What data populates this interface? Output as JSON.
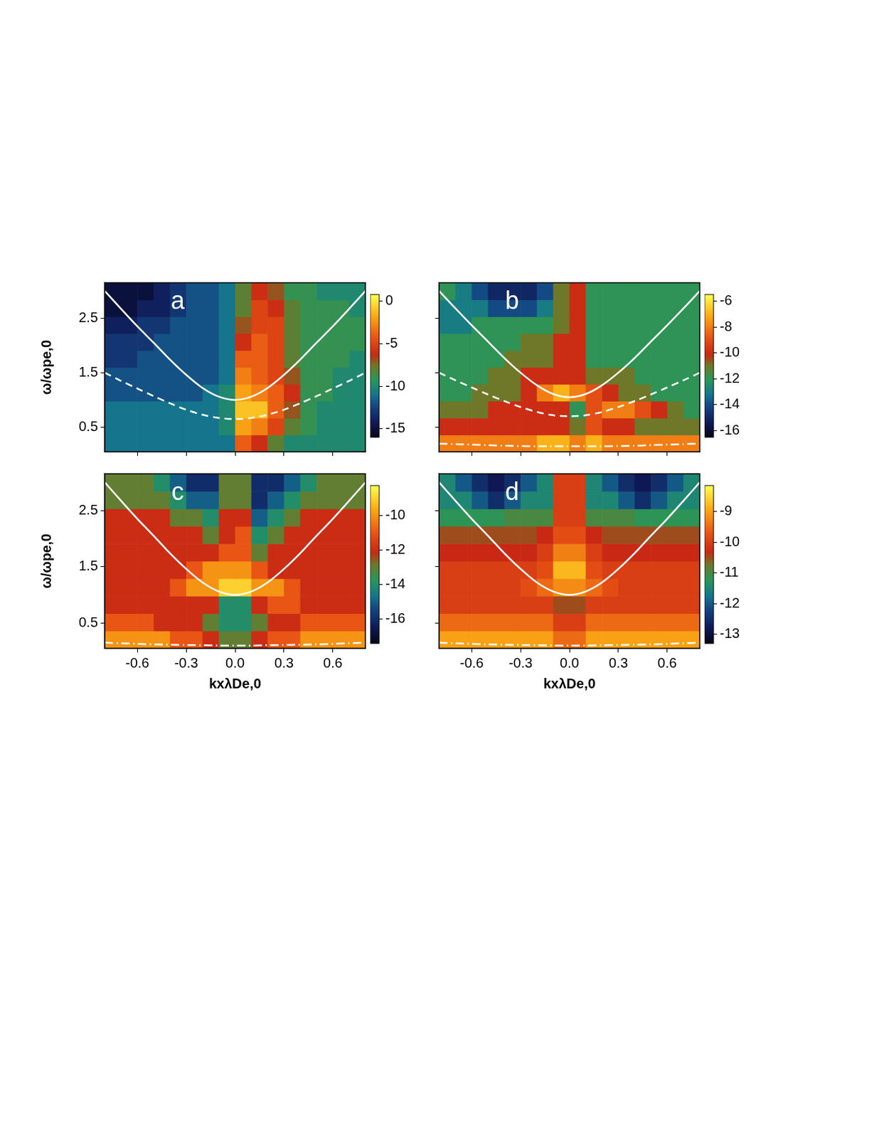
{
  "chart_data": [
    {
      "type": "heatmap",
      "label": "a",
      "ylabel": "ω/ωpe,0",
      "tick_labels": "y",
      "grid": false,
      "xlim": [
        -0.8,
        0.8
      ],
      "ylim": [
        0.05,
        3.15
      ],
      "xticks": [
        -0.6,
        -0.3,
        {
          "value": 0,
          "label": "0.0"
        },
        0.3,
        0.6
      ],
      "yticks": [
        0.5,
        1.5,
        2.5
      ],
      "x_edges": [
        -0.8,
        -0.7,
        -0.6,
        -0.5,
        -0.4,
        -0.3,
        -0.2,
        -0.1,
        0,
        0.1,
        0.2,
        0.3,
        0.4,
        0.5,
        0.6,
        0.7,
        0.8
      ],
      "y_edges": [
        0.05,
        0.36,
        0.67,
        0.98,
        1.29,
        1.6,
        1.91,
        2.22,
        2.53,
        2.84,
        3.15
      ],
      "cells": [
        [
          -11,
          -11,
          -11,
          -11,
          -11,
          -11,
          -11,
          -11,
          -4,
          -6,
          -8,
          -10,
          -10,
          -10,
          -10,
          -10
        ],
        [
          -11,
          -11,
          -11,
          -11,
          -11,
          -11,
          -11,
          -10,
          -2,
          -3,
          -5,
          -8,
          -9,
          -10,
          -10,
          -10
        ],
        [
          -11,
          -11,
          -11,
          -11,
          -11,
          -11,
          -11,
          -10,
          -1,
          -1,
          -4,
          -7,
          -9,
          -10,
          -10,
          -10
        ],
        [
          -12,
          -12,
          -12,
          -12,
          -12,
          -12,
          -11,
          -10,
          -2,
          -3,
          -4,
          -6,
          -9,
          -9,
          -10,
          -10
        ],
        [
          -12,
          -12,
          -12,
          -12,
          -12,
          -12,
          -12,
          -11,
          -3,
          -4,
          -5,
          -7,
          -9,
          -9,
          -10,
          -10
        ],
        [
          -13,
          -13,
          -12,
          -12,
          -12,
          -12,
          -12,
          -11,
          -4,
          -4,
          -5,
          -8,
          -9,
          -9,
          -9,
          -10
        ],
        [
          -13,
          -13,
          -13,
          -12,
          -12,
          -12,
          -12,
          -11,
          -6,
          -4,
          -5,
          -8,
          -9,
          -9,
          -9,
          -9
        ],
        [
          -14,
          -14,
          -13,
          -13,
          -12,
          -12,
          -12,
          -11,
          -7,
          -5,
          -5,
          -8,
          -9,
          -9,
          -9,
          -9
        ],
        [
          -15,
          -15,
          -14,
          -14,
          -13,
          -12,
          -12,
          -11,
          -8,
          -5,
          -6,
          -8,
          -9,
          -9,
          -9,
          -10
        ],
        [
          -15,
          -15,
          -15,
          -14,
          -13,
          -12,
          -12,
          -11,
          -8,
          -6,
          -7,
          -9,
          -9,
          -10,
          -10,
          -10
        ]
      ],
      "colorbar": {
        "range": [
          -16,
          0.8
        ],
        "ticks": [
          0,
          -5,
          -10,
          -15
        ]
      },
      "x": [
        -0.8,
        -0.7,
        -0.6,
        -0.5,
        -0.4,
        -0.3,
        -0.2,
        -0.1,
        0,
        0.1,
        0.2,
        0.3,
        0.4,
        0.5,
        0.6,
        0.7,
        0.8
      ],
      "series": [
        {
          "color": "#ffffff",
          "line_style": "solid",
          "values": [
            3.0,
            2.67,
            2.35,
            2.05,
            1.74,
            1.46,
            1.22,
            1.06,
            1.0,
            1.06,
            1.22,
            1.46,
            1.74,
            2.05,
            2.35,
            2.67,
            3.0
          ]
        },
        {
          "color": "#ffffff",
          "line_style": "dashed",
          "values": [
            1.5,
            1.35,
            1.21,
            1.07,
            0.94,
            0.82,
            0.73,
            0.67,
            0.65,
            0.67,
            0.73,
            0.82,
            0.94,
            1.07,
            1.21,
            1.35,
            1.5
          ]
        }
      ]
    },
    {
      "type": "heatmap",
      "label": "b",
      "tick_labels": false,
      "grid": false,
      "xlim": [
        -0.8,
        0.8
      ],
      "ylim": [
        0.05,
        3.15
      ],
      "xticks": [
        -0.6,
        -0.3,
        {
          "value": 0,
          "label": "0.0"
        },
        0.3,
        0.6
      ],
      "yticks": [
        0.5,
        1.5,
        2.5
      ],
      "x_edges": [
        -0.8,
        -0.7,
        -0.6,
        -0.5,
        -0.4,
        -0.3,
        -0.2,
        -0.1,
        0,
        0.1,
        0.2,
        0.3,
        0.4,
        0.5,
        0.6,
        0.7,
        0.8
      ],
      "y_edges": [
        0.05,
        0.36,
        0.67,
        0.98,
        1.29,
        1.6,
        1.91,
        2.22,
        2.53,
        2.84,
        3.15
      ],
      "cells": [
        [
          -8,
          -8,
          -8,
          -8,
          -8,
          -8,
          -7,
          -7,
          -8,
          -7,
          -8,
          -8,
          -8,
          -8,
          -8,
          -8
        ],
        [
          -10,
          -10,
          -10,
          -10,
          -10,
          -10,
          -10,
          -10,
          -11,
          -9,
          -10,
          -10,
          -11,
          -11,
          -11,
          -11
        ],
        [
          -11,
          -11,
          -11,
          -10,
          -10,
          -10,
          -10,
          -10,
          -12,
          -9,
          -8,
          -8,
          -9,
          -10,
          -11,
          -12
        ],
        [
          -12,
          -12,
          -11,
          -11,
          -11,
          -10,
          -8,
          -7,
          -8,
          -9,
          -10,
          -11,
          -11,
          -12,
          -12,
          -12
        ],
        [
          -12,
          -12,
          -12,
          -11,
          -11,
          -10,
          -10,
          -10,
          -10,
          -11,
          -11,
          -11,
          -12,
          -12,
          -12,
          -12
        ],
        [
          -12,
          -12,
          -12,
          -12,
          -11,
          -11,
          -11,
          -10,
          -10,
          -12,
          -12,
          -12,
          -12,
          -12,
          -12,
          -12
        ],
        [
          -12,
          -12,
          -12,
          -12,
          -12,
          -11,
          -11,
          -10,
          -10,
          -12,
          -12,
          -12,
          -12,
          -12,
          -12,
          -12
        ],
        [
          -13,
          -13,
          -12,
          -12,
          -12,
          -12,
          -12,
          -11,
          -10,
          -12,
          -12,
          -12,
          -12,
          -12,
          -12,
          -12
        ],
        [
          -13,
          -13,
          -13,
          -14,
          -14,
          -14,
          -13,
          -11,
          -10,
          -12,
          -12,
          -12,
          -12,
          -12,
          -12,
          -12
        ],
        [
          -12,
          -13,
          -14,
          -15,
          -15,
          -15,
          -14,
          -11,
          -10,
          -12,
          -12,
          -12,
          -12,
          -12,
          -12,
          -12
        ]
      ],
      "colorbar": {
        "range": [
          -16.5,
          -5.5
        ],
        "ticks": [
          -6,
          -8,
          -10,
          -12,
          -14,
          -16
        ]
      },
      "x": [
        -0.8,
        -0.7,
        -0.6,
        -0.5,
        -0.4,
        -0.3,
        -0.2,
        -0.1,
        0,
        0.1,
        0.2,
        0.3,
        0.4,
        0.5,
        0.6,
        0.7,
        0.8
      ],
      "series": [
        {
          "color": "#ffffff",
          "line_style": "solid",
          "values": [
            3.0,
            2.68,
            2.37,
            2.07,
            1.77,
            1.5,
            1.27,
            1.11,
            1.05,
            1.11,
            1.27,
            1.5,
            1.77,
            2.07,
            2.37,
            2.68,
            3.0
          ]
        },
        {
          "color": "#ffffff",
          "line_style": "dashed",
          "values": [
            1.5,
            1.36,
            1.23,
            1.1,
            0.98,
            0.87,
            0.78,
            0.72,
            0.7,
            0.72,
            0.78,
            0.87,
            0.98,
            1.1,
            1.23,
            1.36,
            1.5
          ]
        },
        {
          "color": "#ffffff",
          "line_style": "dashdot",
          "values": [
            0.2,
            0.19,
            0.18,
            0.17,
            0.16,
            0.155,
            0.15,
            0.15,
            0.15,
            0.15,
            0.15,
            0.155,
            0.16,
            0.17,
            0.18,
            0.19,
            0.2
          ]
        }
      ]
    },
    {
      "type": "heatmap",
      "label": "c",
      "xlabel": "kxλDe,0",
      "ylabel": "ω/ωpe,0",
      "tick_labels": true,
      "grid": false,
      "xlim": [
        -0.8,
        0.8
      ],
      "ylim": [
        0.05,
        3.15
      ],
      "xticks": [
        -0.6,
        -0.3,
        {
          "value": 0,
          "label": "0.0"
        },
        0.3,
        0.6
      ],
      "yticks": [
        0.5,
        1.5,
        2.5
      ],
      "x_edges": [
        -0.8,
        -0.7,
        -0.6,
        -0.5,
        -0.4,
        -0.3,
        -0.2,
        -0.1,
        0,
        0.1,
        0.2,
        0.3,
        0.4,
        0.5,
        0.6,
        0.7,
        0.8
      ],
      "y_edges": [
        0.05,
        0.36,
        0.67,
        0.98,
        1.29,
        1.6,
        1.91,
        2.22,
        2.53,
        2.84,
        3.15
      ],
      "cells": [
        [
          -10,
          -10,
          -10,
          -10,
          -11,
          -11,
          -12,
          -13,
          -13,
          -12,
          -11,
          -11,
          -10,
          -10,
          -10,
          -10
        ],
        [
          -11,
          -11,
          -11,
          -12,
          -12,
          -12,
          -13,
          -14,
          -14,
          -13,
          -12,
          -12,
          -11,
          -11,
          -11,
          -11
        ],
        [
          -12,
          -12,
          -12,
          -12,
          -12,
          -12,
          -12,
          -14,
          -14,
          -12,
          -11,
          -11,
          -12,
          -12,
          -12,
          -12
        ],
        [
          -12,
          -12,
          -12,
          -12,
          -11,
          -10,
          -10,
          -9,
          -9,
          -10,
          -10,
          -11,
          -12,
          -12,
          -12,
          -12
        ],
        [
          -12,
          -12,
          -12,
          -12,
          -12,
          -11,
          -10,
          -10,
          -10,
          -11,
          -12,
          -12,
          -12,
          -12,
          -12,
          -12
        ],
        [
          -12,
          -12,
          -12,
          -12,
          -12,
          -12,
          -12,
          -11,
          -11,
          -13,
          -12,
          -12,
          -12,
          -12,
          -12,
          -12
        ],
        [
          -12,
          -12,
          -12,
          -12,
          -12,
          -12,
          -13,
          -12,
          -11,
          -14,
          -13,
          -12,
          -12,
          -12,
          -12,
          -12
        ],
        [
          -12,
          -12,
          -12,
          -12,
          -13,
          -13,
          -14,
          -12,
          -12,
          -15,
          -14,
          -13,
          -12,
          -12,
          -12,
          -12
        ],
        [
          -13,
          -13,
          -13,
          -13,
          -14,
          -15,
          -15,
          -13,
          -13,
          -16,
          -15,
          -14,
          -13,
          -13,
          -13,
          -13
        ],
        [
          -13,
          -13,
          -13,
          -14,
          -15,
          -16,
          -16,
          -13,
          -13,
          -16,
          -16,
          -15,
          -14,
          -13,
          -13,
          -13
        ]
      ],
      "colorbar": {
        "range": [
          -17.4,
          -8.25
        ],
        "ticks": [
          -10,
          -12,
          -14,
          -16
        ]
      },
      "x": [
        -0.8,
        -0.7,
        -0.6,
        -0.5,
        -0.4,
        -0.3,
        -0.2,
        -0.1,
        0,
        0.1,
        0.2,
        0.3,
        0.4,
        0.5,
        0.6,
        0.7,
        0.8
      ],
      "series": [
        {
          "color": "#ffffff",
          "line_style": "solid",
          "values": [
            3.0,
            2.67,
            2.35,
            2.05,
            1.74,
            1.46,
            1.22,
            1.06,
            1.0,
            1.06,
            1.22,
            1.46,
            1.74,
            2.05,
            2.35,
            2.67,
            3.0
          ]
        },
        {
          "color": "#ffffff",
          "line_style": "dashdot",
          "values": [
            0.15,
            0.14,
            0.13,
            0.12,
            0.115,
            0.11,
            0.105,
            0.1,
            0.1,
            0.1,
            0.105,
            0.11,
            0.115,
            0.12,
            0.13,
            0.14,
            0.15
          ]
        }
      ]
    },
    {
      "type": "heatmap",
      "label": "d",
      "xlabel": "kxλDe,0",
      "tick_labels": "x",
      "grid": false,
      "xlim": [
        -0.8,
        0.8
      ],
      "ylim": [
        0.05,
        3.15
      ],
      "xticks": [
        -0.6,
        -0.3,
        {
          "value": 0,
          "label": "0.0"
        },
        0.3,
        0.6
      ],
      "yticks": [
        0.5,
        1.5,
        2.5
      ],
      "x_edges": [
        -0.8,
        -0.7,
        -0.6,
        -0.5,
        -0.4,
        -0.3,
        -0.2,
        -0.1,
        0,
        0.1,
        0.2,
        0.3,
        0.4,
        0.5,
        0.6,
        0.7,
        0.8
      ],
      "y_edges": [
        0.05,
        0.36,
        0.67,
        0.98,
        1.29,
        1.6,
        1.91,
        2.22,
        2.53,
        2.84,
        3.15
      ],
      "cells": [
        [
          -9,
          -9,
          -9,
          -9,
          -9,
          -9,
          -9,
          -9.5,
          -9.5,
          -9,
          -9,
          -9,
          -9,
          -9,
          -9,
          -9
        ],
        [
          -9.5,
          -9.5,
          -9.5,
          -9.5,
          -9.5,
          -9.5,
          -9.5,
          -10,
          -10,
          -9.5,
          -9.5,
          -9.5,
          -9.5,
          -9.5,
          -9.5,
          -9.5
        ],
        [
          -10,
          -10,
          -10,
          -10,
          -10,
          -10,
          -10,
          -10.5,
          -10.5,
          -10,
          -10,
          -10,
          -10,
          -10,
          -10,
          -10
        ],
        [
          -10,
          -10,
          -10,
          -10,
          -10,
          -9.8,
          -9.5,
          -9.2,
          -9.2,
          -9.5,
          -9.8,
          -10,
          -10,
          -10,
          -10,
          -10
        ],
        [
          -10,
          -10,
          -10,
          -10,
          -10,
          -10,
          -9.8,
          -8.8,
          -8.8,
          -9.8,
          -10,
          -10,
          -10,
          -10,
          -10,
          -10
        ],
        [
          -10.3,
          -10.3,
          -10.3,
          -10.3,
          -10.3,
          -10.3,
          -10,
          -9.3,
          -9.3,
          -10,
          -10.3,
          -10.3,
          -10.3,
          -10.3,
          -10.3,
          -10.3
        ],
        [
          -10.5,
          -10.5,
          -10.5,
          -10.5,
          -10.5,
          -10.5,
          -10.3,
          -9.8,
          -9.8,
          -10.3,
          -10.5,
          -10.5,
          -10.5,
          -10.5,
          -10.5,
          -10.5
        ],
        [
          -11.2,
          -11.2,
          -11.2,
          -11.2,
          -11,
          -11,
          -11,
          -10,
          -10,
          -11,
          -11,
          -11,
          -11.2,
          -11.2,
          -11.2,
          -11.2
        ],
        [
          -11.5,
          -11.5,
          -12,
          -12.5,
          -12,
          -11.5,
          -11.5,
          -10,
          -10,
          -11.5,
          -11.5,
          -12,
          -12.5,
          -12,
          -11.5,
          -11.5
        ],
        [
          -11.5,
          -12,
          -12.5,
          -12.8,
          -12.5,
          -12,
          -11.5,
          -10,
          -10,
          -11.5,
          -12,
          -12.5,
          -12.8,
          -12.5,
          -12,
          -11.5
        ]
      ],
      "colorbar": {
        "range": [
          -13.3,
          -8.15
        ],
        "ticks": [
          -9,
          -10,
          -11,
          -12,
          -13
        ]
      },
      "x": [
        -0.8,
        -0.7,
        -0.6,
        -0.5,
        -0.4,
        -0.3,
        -0.2,
        -0.1,
        0,
        0.1,
        0.2,
        0.3,
        0.4,
        0.5,
        0.6,
        0.7,
        0.8
      ],
      "series": [
        {
          "color": "#ffffff",
          "line_style": "solid",
          "values": [
            3.0,
            2.67,
            2.35,
            2.05,
            1.74,
            1.46,
            1.22,
            1.06,
            1.0,
            1.06,
            1.22,
            1.46,
            1.74,
            2.05,
            2.35,
            2.67,
            3.0
          ]
        },
        {
          "color": "#ffffff",
          "line_style": "dashdot",
          "values": [
            0.15,
            0.14,
            0.13,
            0.12,
            0.115,
            0.11,
            0.105,
            0.1,
            0.1,
            0.1,
            0.105,
            0.11,
            0.115,
            0.12,
            0.13,
            0.14,
            0.15
          ]
        }
      ]
    }
  ]
}
